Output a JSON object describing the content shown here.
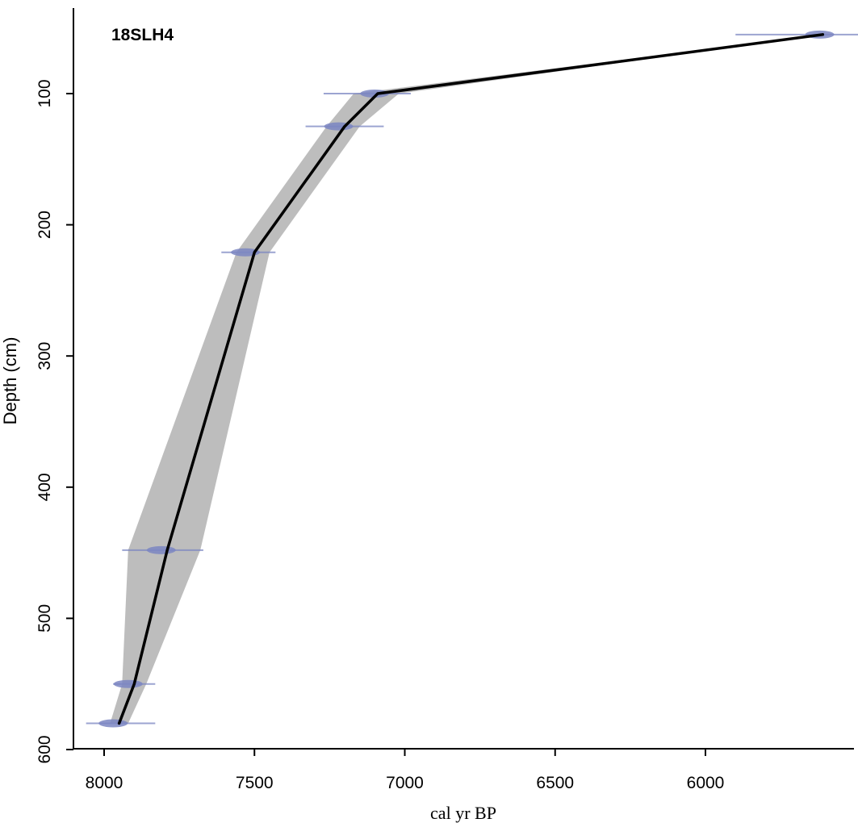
{
  "chart_data": {
    "type": "line",
    "title": "18SLH4",
    "xlabel": "cal yr BP",
    "ylabel": "Depth (cm)",
    "xlim": [
      8100,
      5550
    ],
    "x_reversed": true,
    "ylim": [
      600,
      45
    ],
    "y_reversed": true,
    "x_ticks": [
      8000,
      7500,
      7000,
      6500,
      6000
    ],
    "x_tick_labels": [
      "8000",
      "7500",
      "7000",
      "6500",
      "6000"
    ],
    "y_ticks": [
      100,
      200,
      300,
      400,
      500,
      600
    ],
    "y_tick_labels": [
      "100",
      "200",
      "300",
      "400",
      "500",
      "600"
    ],
    "grid": false,
    "colors": {
      "line": "#000000",
      "band": "#bdbdbd",
      "date_marker": "#7b86c2"
    },
    "series": [
      {
        "kind": "median_age_model",
        "x": [
          5610,
          7090,
          7200,
          7500,
          7790,
          7900,
          7950
        ],
        "y": [
          55,
          100,
          125,
          221,
          448,
          550,
          580
        ]
      },
      {
        "kind": "uncertainty_band",
        "x_low": [
          5610,
          7020,
          7150,
          7450,
          7680,
          7860,
          7920
        ],
        "x_high": [
          5610,
          7170,
          7260,
          7560,
          7920,
          7940,
          7980
        ],
        "y": [
          55,
          100,
          125,
          221,
          448,
          550,
          580
        ]
      }
    ],
    "dated_samples": [
      {
        "depth": 55,
        "age": 5620,
        "range_min": 5410,
        "range_max": 5900
      },
      {
        "depth": 100,
        "age": 7100,
        "range_min": 6980,
        "range_max": 7270
      },
      {
        "depth": 125,
        "age": 7220,
        "range_min": 7070,
        "range_max": 7330
      },
      {
        "depth": 221,
        "age": 7530,
        "range_min": 7430,
        "range_max": 7610
      },
      {
        "depth": 448,
        "age": 7810,
        "range_min": 7670,
        "range_max": 7940
      },
      {
        "depth": 550,
        "age": 7920,
        "range_min": 7830,
        "range_max": 7970
      },
      {
        "depth": 580,
        "age": 7970,
        "range_min": 7830,
        "range_max": 8060
      }
    ]
  }
}
